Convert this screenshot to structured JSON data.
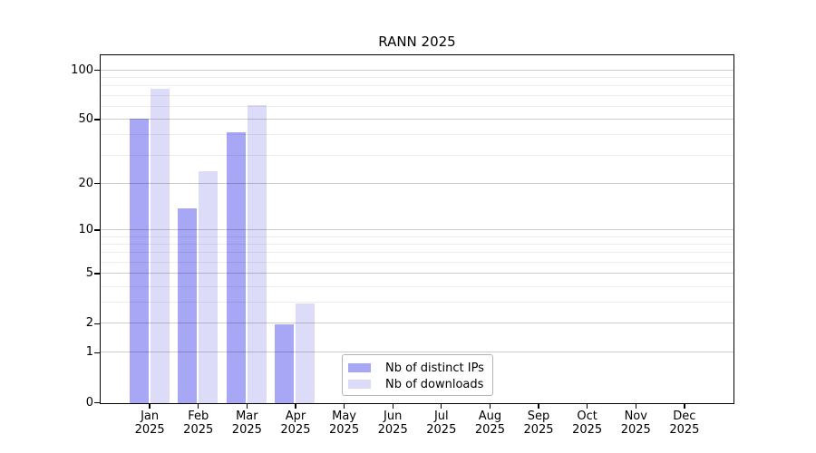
{
  "chart_data": {
    "type": "bar",
    "title": "RANN 2025",
    "categories": [
      "Jan 2025",
      "Feb 2025",
      "Mar 2025",
      "Apr 2025",
      "May 2025",
      "Jun 2025",
      "Jul 2025",
      "Aug 2025",
      "Sep 2025",
      "Oct 2025",
      "Nov 2025",
      "Dec 2025"
    ],
    "series": [
      {
        "name": "Nb of distinct IPs",
        "color": "#a7a7f5",
        "values": [
          51,
          14,
          42,
          2,
          0,
          0,
          0,
          0,
          0,
          0,
          0,
          0
        ]
      },
      {
        "name": "Nb of downloads",
        "color": "#dcdcf8",
        "values": [
          78,
          24,
          62,
          3,
          0,
          0,
          0,
          0,
          0,
          0,
          0,
          0
        ]
      }
    ],
    "xlabel": "",
    "ylabel": "",
    "y_axis": {
      "scale": "log1p",
      "major_ticks": [
        0,
        1,
        2,
        5,
        10,
        20,
        50,
        100
      ],
      "minor_gridlines": [
        3,
        4,
        6,
        7,
        8,
        9,
        30,
        40,
        60,
        70,
        80,
        90
      ],
      "ylim": [
        0,
        123
      ]
    },
    "grid": true,
    "legend_position": "inside-bottom-center",
    "colors": {
      "axis": "#000000",
      "major_grid": "rgba(0,0,0,0.20)",
      "minor_grid": "rgba(0,0,0,0.07)",
      "legend_border": "#b3b3b3",
      "background": "#ffffff"
    }
  }
}
